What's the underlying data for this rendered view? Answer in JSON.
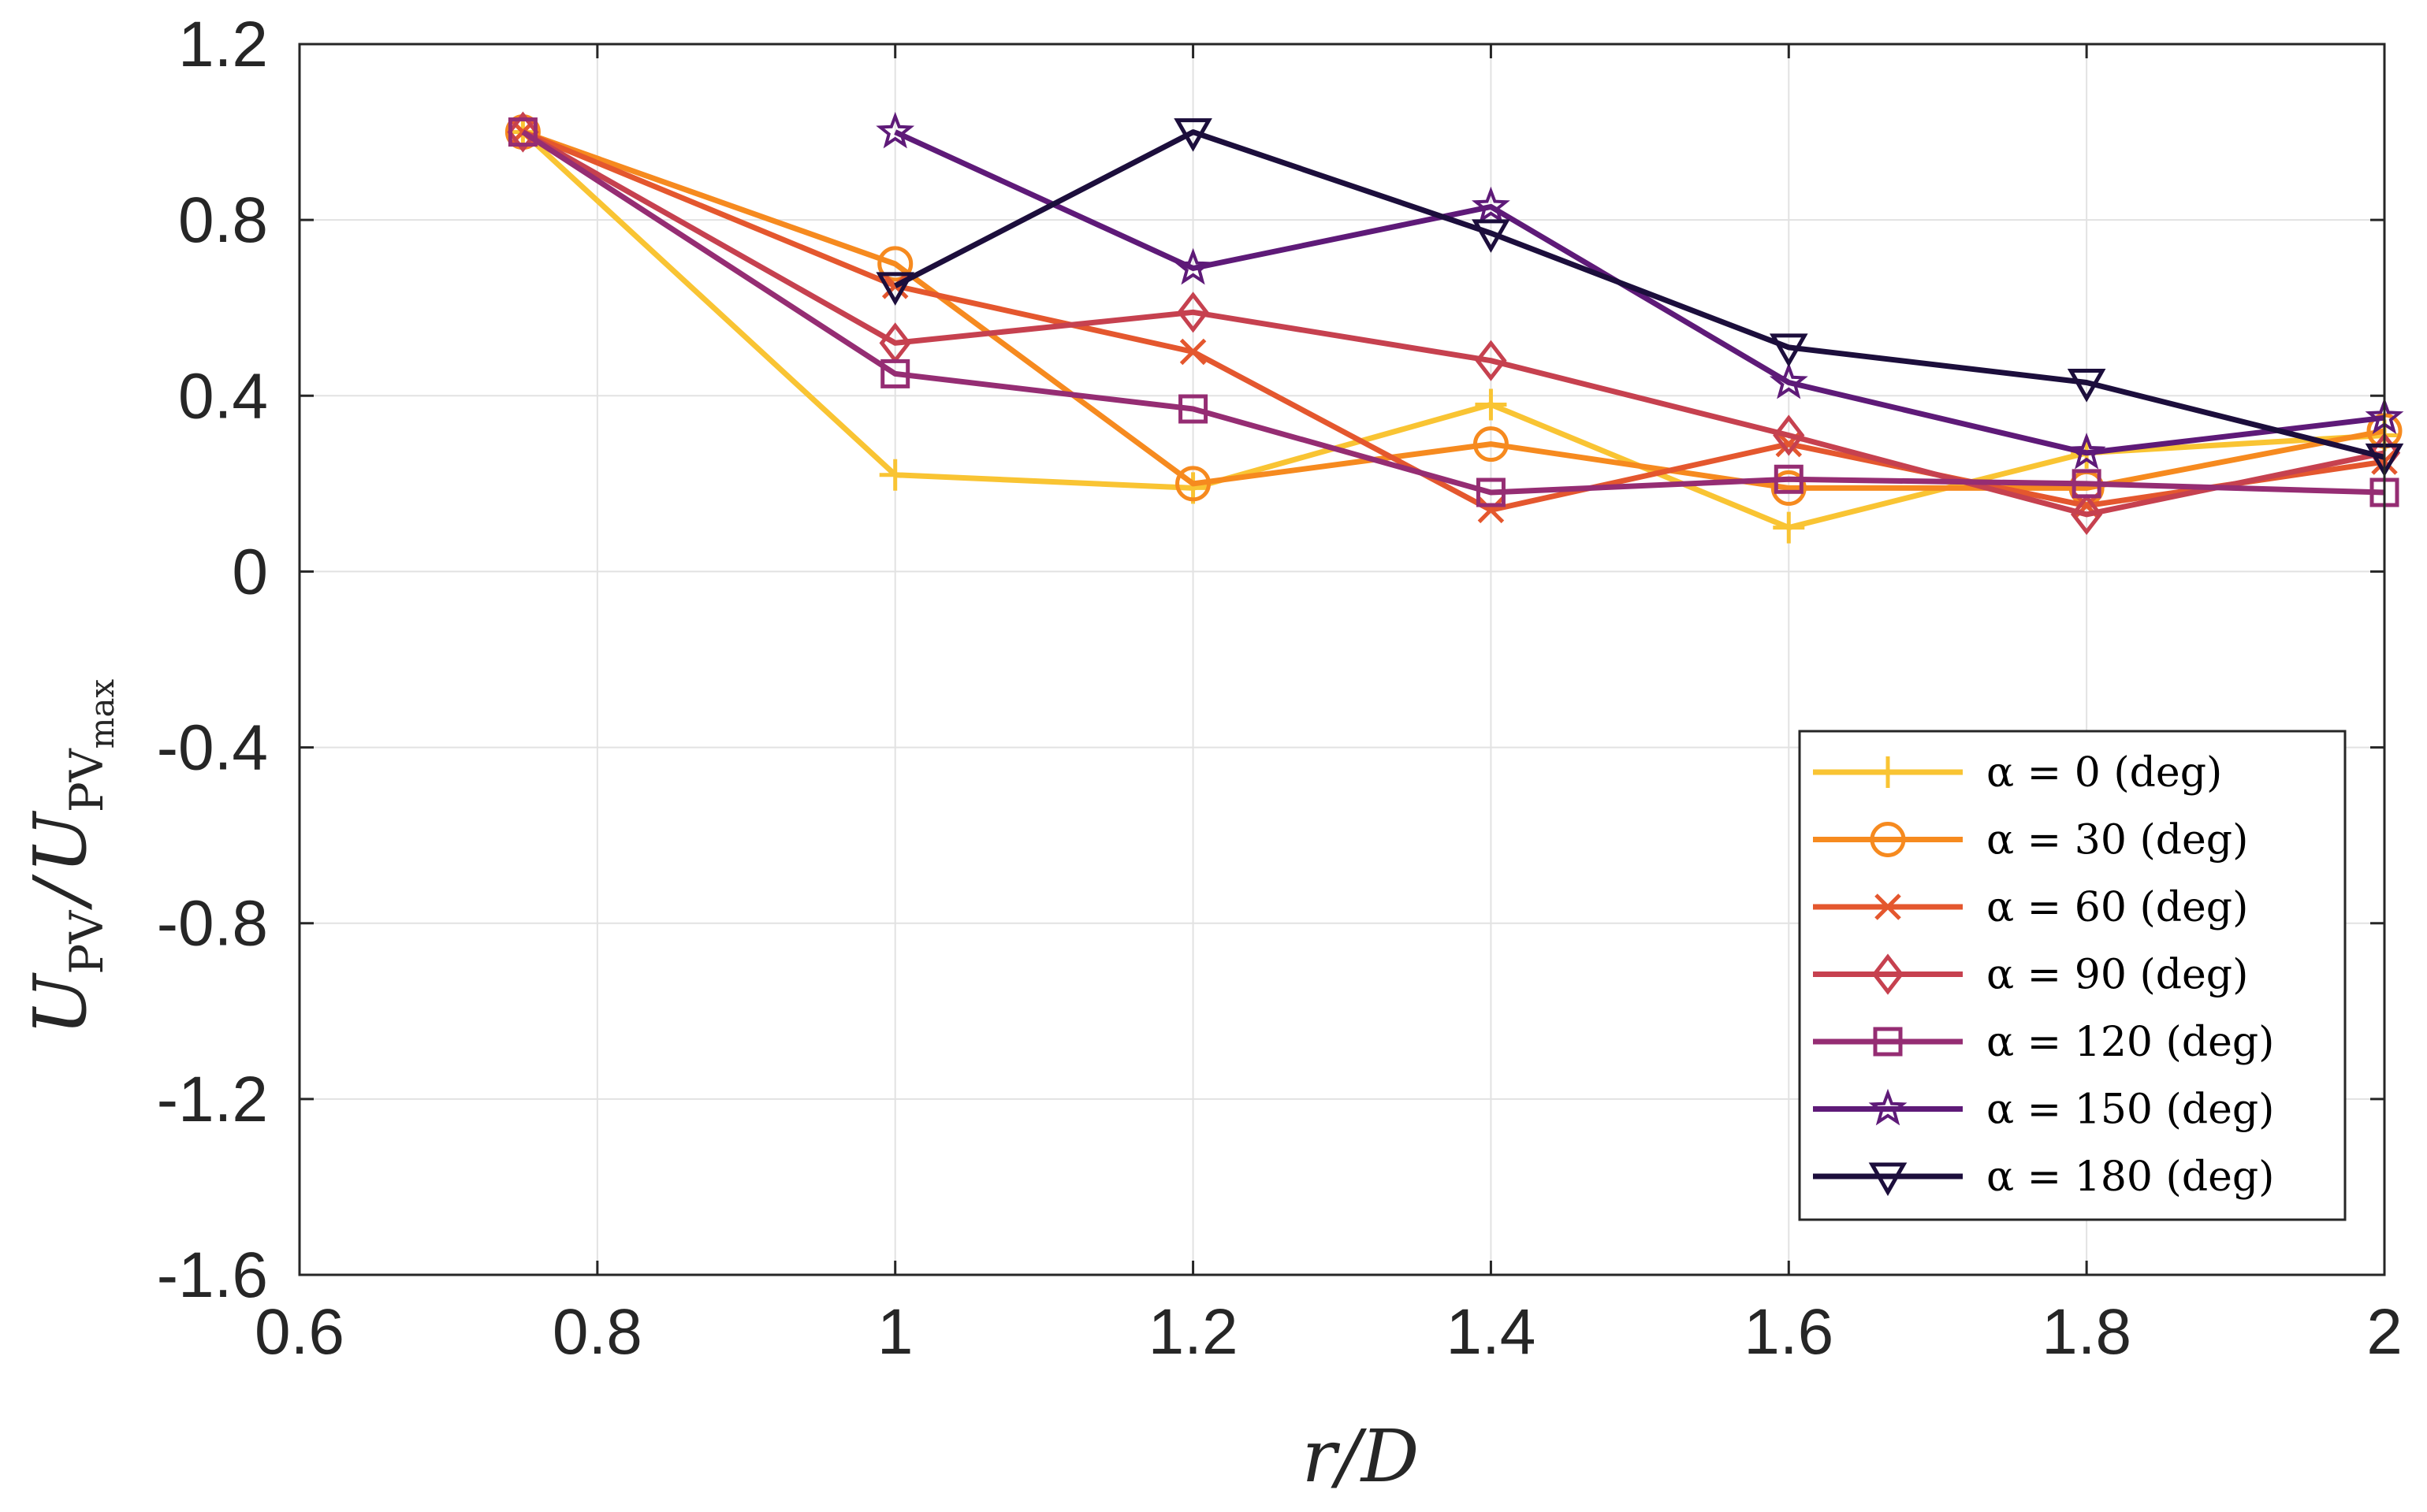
{
  "chart_data": {
    "type": "line",
    "xlabel": "r/D",
    "ylabel": "U_PV / U_PV_max",
    "ylabel_parts": {
      "main": "U",
      "sub": "PV",
      "slash": "/",
      "sub2": "PV",
      "subsub": "max"
    },
    "xlim": [
      0.6,
      2.0
    ],
    "ylim": [
      -1.6,
      1.2
    ],
    "xticks": [
      "0.6",
      "0.8",
      "1",
      "1.2",
      "1.4",
      "1.6",
      "1.8",
      "2"
    ],
    "yticks": [
      "-1.6",
      "-1.2",
      "-0.8",
      "-0.4",
      "0",
      "0.4",
      "0.8",
      "1.2"
    ],
    "grid": true,
    "legend_position": "lower-right",
    "series": [
      {
        "name": "α = 0 (deg)",
        "marker": "plus",
        "color": "#F9C433",
        "x": [
          0.75,
          1.0,
          1.2,
          1.4,
          1.6,
          1.8,
          2.0
        ],
        "y": [
          1.0,
          0.22,
          0.19,
          0.38,
          0.1,
          0.27,
          0.31
        ]
      },
      {
        "name": "α = 30 (deg)",
        "marker": "circle",
        "color": "#F68A1F",
        "x": [
          0.75,
          1.0,
          1.2,
          1.4,
          1.6,
          1.8,
          2.0
        ],
        "y": [
          1.0,
          0.7,
          0.2,
          0.29,
          0.19,
          0.19,
          0.32
        ]
      },
      {
        "name": "α = 60 (deg)",
        "marker": "x",
        "color": "#E4572E",
        "x": [
          0.75,
          1.0,
          1.2,
          1.4,
          1.6,
          1.8,
          2.0
        ],
        "y": [
          1.0,
          0.65,
          0.5,
          0.14,
          0.29,
          0.15,
          0.25
        ]
      },
      {
        "name": "α = 90 (deg)",
        "marker": "diamond",
        "color": "#C6414F",
        "x": [
          0.75,
          1.0,
          1.2,
          1.4,
          1.6,
          1.8,
          2.0
        ],
        "y": [
          1.0,
          0.52,
          0.59,
          0.48,
          0.31,
          0.13,
          0.27
        ]
      },
      {
        "name": "α = 120 (deg)",
        "marker": "square",
        "color": "#952D73",
        "x": [
          0.75,
          1.0,
          1.2,
          1.4,
          1.6,
          1.8,
          2.0
        ],
        "y": [
          1.0,
          0.45,
          0.37,
          0.18,
          0.21,
          0.2,
          0.18
        ]
      },
      {
        "name": "α = 150 (deg)",
        "marker": "star",
        "color": "#5E1A78",
        "x": [
          1.0,
          1.2,
          1.4,
          1.6,
          1.8,
          2.0
        ],
        "y": [
          1.0,
          0.69,
          0.83,
          0.43,
          0.27,
          0.35
        ]
      },
      {
        "name": "α = 180 (deg)",
        "marker": "triangle-down",
        "color": "#1C0E3C",
        "x": [
          1.0,
          1.2,
          1.4,
          1.6,
          1.8,
          2.0
        ],
        "y": [
          0.65,
          1.0,
          0.77,
          0.51,
          0.43,
          0.26
        ]
      }
    ]
  }
}
